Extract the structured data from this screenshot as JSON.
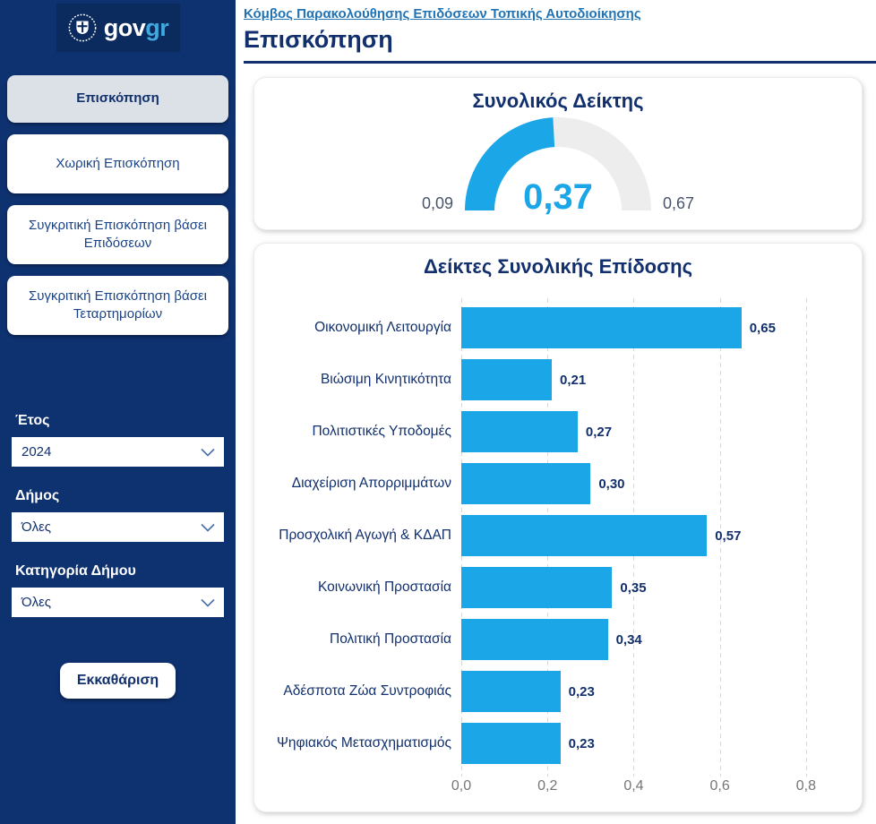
{
  "colors": {
    "sidebar_bg": "#0e3170",
    "logo_box_bg": "#0b2a5e",
    "accent_cyan": "#1ba6e8",
    "navy": "#12306d",
    "link_blue": "#2173b4",
    "gauge_track": "#ededed",
    "selected_nav_bg": "#dce1e7",
    "axis_gray": "#757575"
  },
  "sidebar": {
    "logo": {
      "emblem": "greek-coat-of-arms",
      "text_primary": "gov",
      "text_secondary": "gr"
    },
    "nav": [
      {
        "label": "Επισκόπηση",
        "selected": true
      },
      {
        "label": "Χωρική Επισκόπηση",
        "selected": false
      },
      {
        "label": "Συγκριτική Επισκόπηση βάσει Επιδόσεων",
        "selected": false
      },
      {
        "label": "Συγκριτική Επισκόπηση βάσει Τεταρτημορίων",
        "selected": false
      }
    ],
    "filters": [
      {
        "label": "Έτος",
        "value": "2024"
      },
      {
        "label": "Δήμος",
        "value": "Όλες"
      },
      {
        "label": "Κατηγορία Δήμου",
        "value": "Όλες"
      }
    ],
    "clear_button_label": "Εκκαθάριση"
  },
  "header": {
    "site_link": "Κόμβος Παρακολούθησης Επιδόσεων Τοπικής Αυτοδιοίκησης",
    "page_title": "Επισκόπηση"
  },
  "chart_data": [
    {
      "type": "gauge",
      "title": "Συνολικός Δείκτης",
      "value": 0.37,
      "min": 0.09,
      "max": 0.67,
      "value_label": "0,37",
      "min_label": "0,09",
      "max_label": "0,67",
      "fill_color": "#1ba6e8",
      "track_color": "#ededed"
    },
    {
      "type": "bar",
      "orientation": "horizontal",
      "title": "Δείκτες Συνολικής Επίδοσης",
      "categories": [
        "Οικονομική Λειτουργία",
        "Βιώσιμη Κινητικότητα",
        "Πολιτιστικές Υποδομές",
        "Διαχείριση Απορριμμάτων",
        "Προσχολική Αγωγή & ΚΔΑΠ",
        "Κοινωνική Προστασία",
        "Πολιτική Προστασία",
        "Αδέσποτα Ζώα Συντροφιάς",
        "Ψηφιακός Μετασχηματισμός"
      ],
      "values": [
        0.65,
        0.21,
        0.27,
        0.3,
        0.57,
        0.35,
        0.34,
        0.23,
        0.23
      ],
      "value_labels": [
        "0,65",
        "0,21",
        "0,27",
        "0,30",
        "0,57",
        "0,35",
        "0,34",
        "0,23",
        "0,23"
      ],
      "xlim": [
        0,
        0.9
      ],
      "x_ticks": [
        {
          "value": 0.0,
          "label": "0,0"
        },
        {
          "value": 0.2,
          "label": "0,2"
        },
        {
          "value": 0.4,
          "label": "0,4"
        },
        {
          "value": 0.6,
          "label": "0,6"
        },
        {
          "value": 0.8,
          "label": "0,8"
        }
      ],
      "bar_color": "#1ba6e8",
      "grid": "dashed-vertical"
    }
  ]
}
